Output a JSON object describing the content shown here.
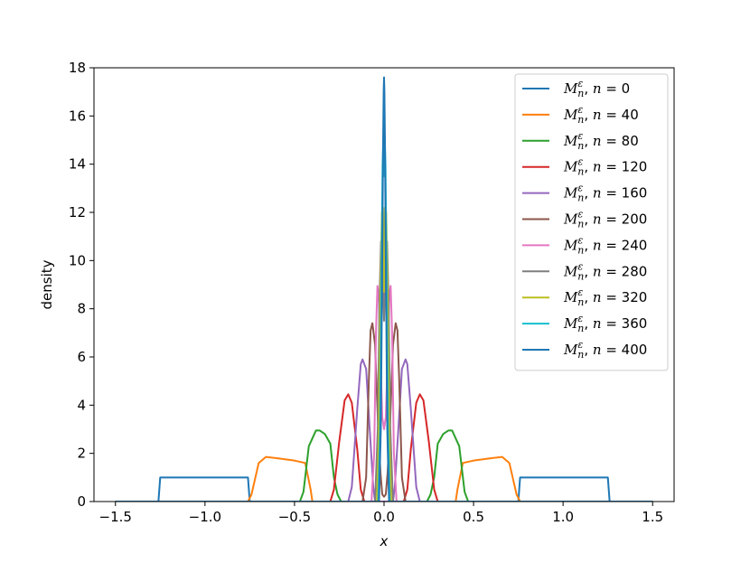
{
  "chart_data": {
    "type": "line",
    "xlabel": "x",
    "ylabel": "density",
    "xlim": [
      -1.62,
      1.62
    ],
    "ylim": [
      0,
      18
    ],
    "xticks": [
      -1.5,
      -1.0,
      -0.5,
      0.0,
      0.5,
      1.0,
      1.5
    ],
    "xtick_labels": [
      "−1.5",
      "−1.0",
      "−0.5",
      "0.0",
      "0.5",
      "1.0",
      "1.5"
    ],
    "yticks": [
      0,
      2,
      4,
      6,
      8,
      10,
      12,
      14,
      16,
      18
    ],
    "ytick_labels": [
      "0",
      "2",
      "4",
      "6",
      "8",
      "10",
      "12",
      "14",
      "16",
      "18"
    ],
    "grid": false,
    "legend_position": "top-right",
    "series": [
      {
        "name": "M_n^ε, n = 0",
        "n": "0",
        "color": "#1f77b4",
        "x": [
          -1.5,
          -1.26,
          -1.25,
          -0.76,
          -0.75,
          -0.7,
          0.7,
          0.75,
          0.76,
          1.25,
          1.26,
          1.5
        ],
        "y": [
          0,
          0,
          1.0,
          1.0,
          0,
          0,
          0,
          0,
          1.0,
          1.0,
          0,
          0
        ]
      },
      {
        "name": "M_n^ε, n = 40",
        "n": "40",
        "color": "#ff7f0e",
        "x": [
          -1.5,
          -0.76,
          -0.74,
          -0.7,
          -0.66,
          -0.6,
          -0.5,
          -0.44,
          -0.41,
          -0.4,
          0.4,
          0.41,
          0.44,
          0.5,
          0.6,
          0.66,
          0.7,
          0.74,
          0.76,
          1.5
        ],
        "y": [
          0,
          0,
          0.3,
          1.6,
          1.85,
          1.8,
          1.7,
          1.6,
          0.5,
          0,
          0,
          0.5,
          1.6,
          1.7,
          1.8,
          1.85,
          1.6,
          0.3,
          0,
          0
        ]
      },
      {
        "name": "M_n^ε, n = 80",
        "n": "80",
        "color": "#2ca02c",
        "x": [
          -1.5,
          -0.47,
          -0.45,
          -0.42,
          -0.38,
          -0.36,
          -0.33,
          -0.3,
          -0.28,
          -0.26,
          -0.24,
          0.24,
          0.26,
          0.28,
          0.3,
          0.33,
          0.36,
          0.38,
          0.42,
          0.45,
          0.47,
          1.5
        ],
        "y": [
          0,
          0,
          0.4,
          2.3,
          2.95,
          2.95,
          2.8,
          2.4,
          1.0,
          0.3,
          0,
          0,
          0.3,
          1.0,
          2.4,
          2.8,
          2.95,
          2.95,
          2.3,
          0.4,
          0,
          0
        ]
      },
      {
        "name": "M_n^ε, n = 120",
        "n": "120",
        "color": "#d62728",
        "x": [
          -1.5,
          -0.3,
          -0.28,
          -0.25,
          -0.22,
          -0.2,
          -0.18,
          -0.15,
          -0.13,
          -0.11,
          0.11,
          0.13,
          0.15,
          0.18,
          0.2,
          0.22,
          0.25,
          0.28,
          0.3,
          1.5
        ],
        "y": [
          0,
          0,
          0.5,
          2.5,
          4.2,
          4.45,
          4.1,
          2.2,
          0.5,
          0,
          0,
          0.5,
          2.2,
          4.1,
          4.45,
          4.2,
          2.5,
          0.5,
          0,
          0
        ]
      },
      {
        "name": "M_n^ε, n = 160",
        "n": "160",
        "color": "#9467bd",
        "x": [
          -1.5,
          -0.2,
          -0.18,
          -0.15,
          -0.13,
          -0.12,
          -0.1,
          -0.08,
          -0.06,
          -0.05,
          0.05,
          0.06,
          0.08,
          0.1,
          0.12,
          0.13,
          0.15,
          0.18,
          0.2,
          1.5
        ],
        "y": [
          0,
          0,
          0.6,
          3.8,
          5.7,
          5.9,
          5.5,
          3.0,
          0.6,
          0,
          0,
          0.6,
          3.0,
          5.5,
          5.9,
          5.7,
          3.8,
          0.6,
          0,
          0
        ]
      },
      {
        "name": "M_n^ε, n = 200",
        "n": "200",
        "color": "#8c564b",
        "x": [
          -1.5,
          -0.12,
          -0.1,
          -0.085,
          -0.075,
          -0.065,
          -0.05,
          -0.035,
          -0.02,
          -0.01,
          0,
          0.01,
          0.02,
          0.035,
          0.05,
          0.065,
          0.075,
          0.085,
          0.1,
          0.12,
          1.5
        ],
        "y": [
          0,
          0,
          1.0,
          5.0,
          7.1,
          7.4,
          6.5,
          3.5,
          1.2,
          0.3,
          0.2,
          0.3,
          1.2,
          3.5,
          6.5,
          7.4,
          7.1,
          5.0,
          1.0,
          0,
          0
        ]
      },
      {
        "name": "M_n^ε, n = 240",
        "n": "240",
        "color": "#e377c2",
        "x": [
          -1.5,
          -0.07,
          -0.055,
          -0.045,
          -0.037,
          -0.03,
          -0.02,
          -0.01,
          0,
          0.01,
          0.02,
          0.03,
          0.037,
          0.045,
          0.055,
          0.07,
          1.5
        ],
        "y": [
          0,
          0,
          2.0,
          7.0,
          8.95,
          8.6,
          6.0,
          3.5,
          3.0,
          3.5,
          6.0,
          8.6,
          8.95,
          7.0,
          2.0,
          0,
          0
        ]
      },
      {
        "name": "M_n^ε, n = 280",
        "n": "280",
        "color": "#7f7f7f",
        "x": [
          -1.5,
          -0.05,
          -0.035,
          -0.025,
          -0.017,
          -0.01,
          0,
          0.01,
          0.017,
          0.025,
          0.035,
          0.05,
          1.5
        ],
        "y": [
          0,
          0,
          3.0,
          8.5,
          10.8,
          10.0,
          7.5,
          10.0,
          10.8,
          8.5,
          3.0,
          0,
          0
        ]
      },
      {
        "name": "M_n^ε, n = 320",
        "n": "320",
        "color": "#bcbd22",
        "x": [
          -1.5,
          -0.04,
          -0.03,
          -0.02,
          -0.012,
          -0.006,
          0,
          0.006,
          0.012,
          0.02,
          0.03,
          0.04,
          1.5
        ],
        "y": [
          0,
          0,
          2.5,
          8.5,
          12.0,
          12.2,
          8.7,
          12.2,
          12.0,
          8.5,
          2.5,
          0,
          0
        ]
      },
      {
        "name": "M_n^ε, n = 360",
        "n": "360",
        "color": "#17becf",
        "x": [
          -1.5,
          -0.032,
          -0.022,
          -0.014,
          -0.008,
          -0.004,
          0,
          0.004,
          0.008,
          0.014,
          0.022,
          0.032,
          1.5
        ],
        "y": [
          0,
          0,
          3.0,
          9.5,
          14.0,
          15.0,
          13.5,
          15.0,
          14.0,
          9.5,
          3.0,
          0,
          0
        ]
      },
      {
        "name": "M_n^ε, n = 400",
        "n": "400",
        "color": "#1f77b4",
        "x": [
          -1.5,
          -0.028,
          -0.018,
          -0.01,
          -0.005,
          -0.002,
          0,
          0.002,
          0.005,
          0.01,
          0.018,
          0.028,
          1.5
        ],
        "y": [
          0,
          0,
          3.0,
          10.0,
          15.0,
          17.0,
          17.6,
          17.0,
          15.0,
          10.0,
          3.0,
          0,
          0
        ]
      }
    ]
  }
}
